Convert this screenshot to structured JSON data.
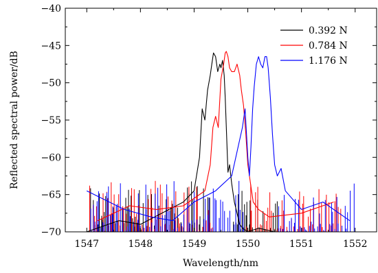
{
  "chart_data": {
    "type": "line",
    "title": "",
    "xlabel": "Wavelength/nm",
    "ylabel": "Reflected spectral power/dB",
    "xlim": [
      1546.6,
      1552.4
    ],
    "ylim": [
      -70,
      -40
    ],
    "x_ticks": [
      1547,
      1548,
      1549,
      1550,
      1551,
      1552
    ],
    "x_tick_labels": [
      "1547",
      "1548",
      "1549",
      "1550",
      "1551",
      "1552"
    ],
    "y_ticks": [
      -40,
      -45,
      -50,
      -55,
      -60,
      -65,
      -70
    ],
    "y_tick_labels": [
      "−40",
      "−45",
      "−50",
      "−55",
      "−60",
      "−65",
      "−70"
    ],
    "grid": false,
    "legend_position": "top-right",
    "series": [
      {
        "name": "0.392 N",
        "color": "#000000",
        "x": [
          1547.0,
          1547.6,
          1548.0,
          1548.4,
          1548.8,
          1549.0,
          1549.1,
          1549.15,
          1549.2,
          1549.25,
          1549.3,
          1549.33,
          1549.36,
          1549.4,
          1549.44,
          1549.48,
          1549.5,
          1549.53,
          1549.56,
          1549.58,
          1549.6,
          1549.63,
          1549.66,
          1549.7,
          1549.75,
          1549.8,
          1549.85,
          1549.9,
          1550.0,
          1550.2,
          1550.5
        ],
        "y": [
          -70.0,
          -68.5,
          -69.0,
          -67.5,
          -66.0,
          -64.5,
          -60.0,
          -53.5,
          -55.0,
          -51.0,
          -49.0,
          -47.5,
          -46.0,
          -46.5,
          -48.5,
          -47.5,
          -48.0,
          -47.0,
          -49.0,
          -52.0,
          -56.0,
          -62.0,
          -61.0,
          -63.5,
          -66.0,
          -67.5,
          -69.0,
          -69.5,
          -70.0,
          -69.5,
          -70.0
        ]
      },
      {
        "name": "0.784 N",
        "color": "#ff0000",
        "x": [
          1547.2,
          1547.8,
          1548.3,
          1548.8,
          1549.2,
          1549.3,
          1549.35,
          1549.4,
          1549.45,
          1549.5,
          1549.55,
          1549.58,
          1549.6,
          1549.63,
          1549.66,
          1549.7,
          1549.75,
          1549.8,
          1549.85,
          1549.88,
          1549.92,
          1549.96,
          1550.0,
          1550.05,
          1550.1,
          1550.2,
          1550.4,
          1551.0,
          1551.6
        ],
        "y": [
          -68.5,
          -66.5,
          -67.0,
          -66.5,
          -64.5,
          -61.0,
          -56.0,
          -54.5,
          -56.0,
          -49.5,
          -47.5,
          -46.0,
          -45.8,
          -46.5,
          -48.0,
          -48.5,
          -48.5,
          -47.5,
          -49.0,
          -51.0,
          -53.0,
          -56.5,
          -61.0,
          -63.5,
          -66.0,
          -67.0,
          -68.0,
          -67.5,
          -66.0
        ]
      },
      {
        "name": "1.176 N",
        "color": "#0000ff",
        "x": [
          1547.0,
          1547.7,
          1548.2,
          1548.6,
          1549.0,
          1549.4,
          1549.7,
          1549.9,
          1549.95,
          1550.0,
          1550.03,
          1550.06,
          1550.09,
          1550.12,
          1550.16,
          1550.2,
          1550.24,
          1550.28,
          1550.32,
          1550.35,
          1550.38,
          1550.42,
          1550.46,
          1550.5,
          1550.55,
          1550.62,
          1550.7,
          1551.0,
          1551.4,
          1551.9
        ],
        "y": [
          -64.5,
          -67.0,
          -68.0,
          -68.5,
          -66.0,
          -64.5,
          -62.5,
          -56.0,
          -53.5,
          -60.0,
          -62.5,
          -58.5,
          -53.5,
          -50.5,
          -47.5,
          -46.5,
          -47.5,
          -48.0,
          -46.5,
          -46.5,
          -48.0,
          -52.0,
          -57.0,
          -61.0,
          -62.5,
          -61.5,
          -64.5,
          -67.0,
          -66.0,
          -68.5
        ]
      }
    ],
    "noise": [
      {
        "color": "#000000",
        "ranges": [
          [
            1547.05,
            1549.3
          ],
          [
            1549.72,
            1550.55
          ]
        ],
        "count": 95,
        "seed": 11,
        "floor": -70,
        "amp": 7
      },
      {
        "color": "#ff0000",
        "ranges": [
          [
            1547.05,
            1549.35
          ],
          [
            1549.95,
            1551.75
          ]
        ],
        "count": 110,
        "seed": 23,
        "floor": -70,
        "amp": 7
      },
      {
        "color": "#0000ff",
        "ranges": [
          [
            1547.05,
            1549.95
          ],
          [
            1550.55,
            1552.0
          ]
        ],
        "count": 120,
        "seed": 37,
        "floor": -70,
        "amp": 7
      }
    ]
  }
}
